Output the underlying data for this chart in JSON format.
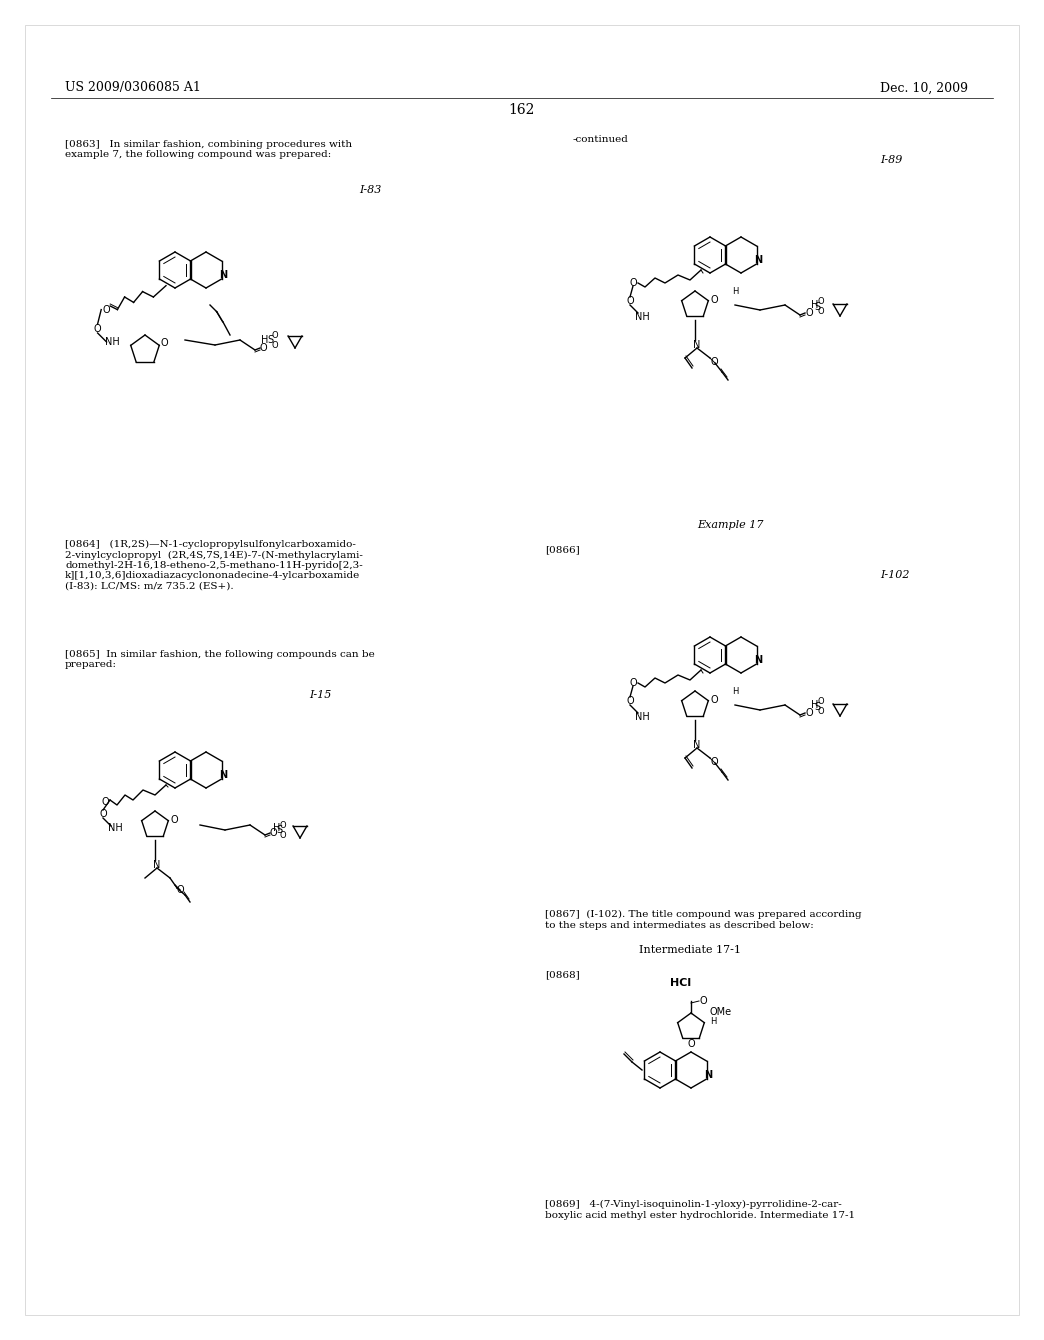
{
  "page_number": "162",
  "patent_number": "US 2009/0306085 A1",
  "patent_date": "Dec. 10, 2009",
  "background_color": "#ffffff",
  "text_color": "#000000",
  "font_size_header": 9,
  "font_size_body": 7.5,
  "font_size_page": 10,
  "left_column_text_1": "[0863]   In similar fashion, combining procedures with\nexample 7, the following compound was prepared:",
  "right_column_continued": "-continued",
  "label_I83": "I-83",
  "label_I89": "I-89",
  "label_I15": "I-15",
  "label_I102": "I-102",
  "label_example17": "Example 17",
  "label_intermediate171": "Intermediate 17-1",
  "body_text_0864": "[0864]   (1R,2S)—N-1-cyclopropylsulfonylcarboxamido-\n2-vinylcyclopropyl  (2R,4S,7S,14E)-7-(N-methylacrylami-\ndomethyl-2H-16,18-etheno-2,5-methano-11H-pyrido[2,3-\nk][1,10,3,6]dioxadiazacyclononadecine-4-ylcarboxamide\n(I-83): LC/MS: m/z 735.2 (ES+).",
  "body_text_0865": "[0865]  In similar fashion, the following compounds can be\nprepared:",
  "body_text_0866": "[0866]",
  "body_text_0867": "[0867]  (I-102). The title compound was prepared according\nto the steps and intermediates as described below:",
  "body_text_0868": "[0868]",
  "body_text_0869": "[0869]   4-(7-Vinyl-isoquinolin-1-yloxy)-pyrrolidine-2-car-\nboxylic acid methyl ester hydrochloride. Intermediate 17-1"
}
